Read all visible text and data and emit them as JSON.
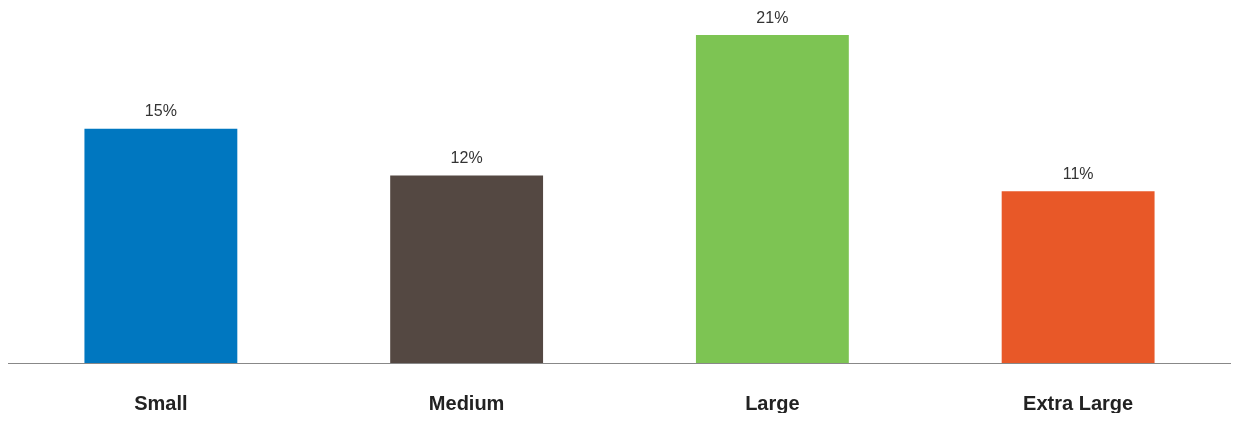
{
  "chart_data": {
    "type": "bar",
    "categories": [
      "Small",
      "Medium",
      "Large",
      "Extra Large"
    ],
    "values": [
      15,
      12,
      21,
      11
    ],
    "colors": [
      "#0077c0",
      "#544842",
      "#7dc453",
      "#e85828"
    ],
    "value_labels": [
      "15%",
      "12%",
      "21%",
      "11%"
    ]
  }
}
